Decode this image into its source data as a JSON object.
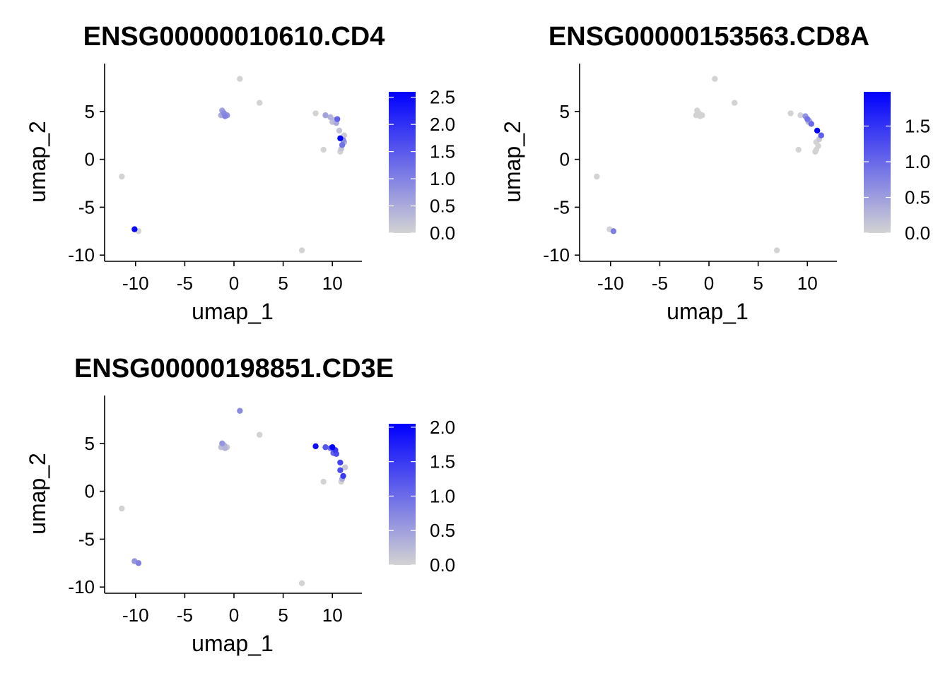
{
  "colors": {
    "low": "#d3d3d3",
    "high": "#0000ff",
    "axis": "#000000"
  },
  "chart_data": [
    {
      "type": "scatter",
      "title": "ENSG00000010610.CD4",
      "xlabel": "umap_1",
      "ylabel": "umap_2",
      "xlim": [
        -13,
        13
      ],
      "ylim": [
        -10.5,
        10
      ],
      "x_ticks": [
        -10,
        -5,
        0,
        5,
        10
      ],
      "x_tick_labels": [
        "-10",
        "-5",
        "0",
        "5",
        "10"
      ],
      "y_ticks": [
        -10,
        -5,
        0,
        5
      ],
      "y_tick_labels": [
        "-10",
        "-5",
        "0",
        "5"
      ],
      "color_scale": {
        "min": 0,
        "max": 2.6,
        "ticks": [
          0.0,
          0.5,
          1.0,
          1.5,
          2.0,
          2.5
        ],
        "tick_labels": [
          "0.0",
          "0.5",
          "1.0",
          "1.5",
          "2.0",
          "2.5"
        ]
      },
      "points": [
        {
          "x": 0.6,
          "y": 8.4,
          "v": 0
        },
        {
          "x": 2.6,
          "y": 5.9,
          "v": 0
        },
        {
          "x": -11.4,
          "y": -1.8,
          "v": 0
        },
        {
          "x": 6.9,
          "y": -9.5,
          "v": 0
        },
        {
          "x": -1.2,
          "y": 5.1,
          "v": 0.6
        },
        {
          "x": -1.0,
          "y": 4.8,
          "v": 0.9
        },
        {
          "x": -1.3,
          "y": 4.6,
          "v": 0.5
        },
        {
          "x": -0.9,
          "y": 4.5,
          "v": 1.0
        },
        {
          "x": -0.7,
          "y": 4.6,
          "v": 0.8
        },
        {
          "x": -1.1,
          "y": 4.9,
          "v": 0.7
        },
        {
          "x": 8.3,
          "y": 4.8,
          "v": 0
        },
        {
          "x": 9.3,
          "y": 4.6,
          "v": 0.6
        },
        {
          "x": 9.8,
          "y": 4.4,
          "v": 0.4
        },
        {
          "x": 10.2,
          "y": 4.1,
          "v": 0.3
        },
        {
          "x": 10.0,
          "y": 3.9,
          "v": 0.2
        },
        {
          "x": 10.5,
          "y": 4.2,
          "v": 1.4
        },
        {
          "x": 10.4,
          "y": 3.8,
          "v": 0.5
        },
        {
          "x": 10.7,
          "y": 3.0,
          "v": 0.2
        },
        {
          "x": 11.2,
          "y": 2.5,
          "v": 0.1
        },
        {
          "x": 10.8,
          "y": 2.2,
          "v": 2.6
        },
        {
          "x": 11.1,
          "y": 2.0,
          "v": 0.9
        },
        {
          "x": 11.0,
          "y": 1.5,
          "v": 1.2
        },
        {
          "x": 11.2,
          "y": 1.8,
          "v": 0.4
        },
        {
          "x": 10.9,
          "y": 1.1,
          "v": 0.2
        },
        {
          "x": 10.8,
          "y": 0.8,
          "v": 0
        },
        {
          "x": 9.1,
          "y": 1.0,
          "v": 0
        },
        {
          "x": -10.1,
          "y": -7.3,
          "v": 2.5
        },
        {
          "x": -9.7,
          "y": -7.5,
          "v": 0
        }
      ]
    },
    {
      "type": "scatter",
      "title": "ENSG00000153563.CD8A",
      "xlabel": "umap_1",
      "ylabel": "umap_2",
      "xlim": [
        -13,
        13
      ],
      "ylim": [
        -10.5,
        10
      ],
      "x_ticks": [
        -10,
        -5,
        0,
        5,
        10
      ],
      "x_tick_labels": [
        "-10",
        "-5",
        "0",
        "5",
        "10"
      ],
      "y_ticks": [
        -10,
        -5,
        0,
        5
      ],
      "y_tick_labels": [
        "-10",
        "-5",
        "0",
        "5"
      ],
      "color_scale": {
        "min": 0,
        "max": 1.98,
        "ticks": [
          0.0,
          0.5,
          1.0,
          1.5
        ],
        "tick_labels": [
          "0.0",
          "0.5",
          "1.0",
          "1.5"
        ]
      },
      "points": [
        {
          "x": 0.6,
          "y": 8.4,
          "v": 0
        },
        {
          "x": 2.6,
          "y": 5.9,
          "v": 0
        },
        {
          "x": -11.4,
          "y": -1.8,
          "v": 0
        },
        {
          "x": 6.9,
          "y": -9.5,
          "v": 0
        },
        {
          "x": -1.2,
          "y": 5.1,
          "v": 0
        },
        {
          "x": -1.0,
          "y": 4.8,
          "v": 0
        },
        {
          "x": -1.3,
          "y": 4.6,
          "v": 0
        },
        {
          "x": -0.9,
          "y": 4.5,
          "v": 0
        },
        {
          "x": -0.7,
          "y": 4.6,
          "v": 0
        },
        {
          "x": 8.3,
          "y": 4.8,
          "v": 0
        },
        {
          "x": 9.3,
          "y": 4.6,
          "v": 0
        },
        {
          "x": 9.8,
          "y": 4.5,
          "v": 0.6
        },
        {
          "x": 10.0,
          "y": 4.2,
          "v": 0.9
        },
        {
          "x": 10.2,
          "y": 4.0,
          "v": 0.4
        },
        {
          "x": 10.4,
          "y": 3.7,
          "v": 1.0
        },
        {
          "x": 10.1,
          "y": 3.9,
          "v": 0.2
        },
        {
          "x": 11.0,
          "y": 3.0,
          "v": 1.98
        },
        {
          "x": 11.4,
          "y": 2.5,
          "v": 1.1
        },
        {
          "x": 11.2,
          "y": 2.1,
          "v": 0.1
        },
        {
          "x": 10.9,
          "y": 1.8,
          "v": 0
        },
        {
          "x": 11.1,
          "y": 1.4,
          "v": 0
        },
        {
          "x": 10.9,
          "y": 1.0,
          "v": 0
        },
        {
          "x": 10.8,
          "y": 0.8,
          "v": 0
        },
        {
          "x": 9.1,
          "y": 1.0,
          "v": 0
        },
        {
          "x": -10.1,
          "y": -7.3,
          "v": 0
        },
        {
          "x": -9.7,
          "y": -7.5,
          "v": 0.8
        }
      ]
    },
    {
      "type": "scatter",
      "title": "ENSG00000198851.CD3E",
      "xlabel": "umap_1",
      "ylabel": "umap_2",
      "xlim": [
        -13,
        13
      ],
      "ylim": [
        -10.5,
        10
      ],
      "x_ticks": [
        -10,
        -5,
        0,
        5,
        10
      ],
      "x_tick_labels": [
        "-10",
        "-5",
        "0",
        "5",
        "10"
      ],
      "y_ticks": [
        -10,
        -5,
        0,
        5
      ],
      "y_tick_labels": [
        "-10",
        "-5",
        "0",
        "5"
      ],
      "color_scale": {
        "min": 0,
        "max": 2.05,
        "ticks": [
          0.0,
          0.5,
          1.0,
          1.5,
          2.0
        ],
        "tick_labels": [
          "0.0",
          "0.5",
          "1.0",
          "1.5",
          "2.0"
        ]
      },
      "points": [
        {
          "x": 0.6,
          "y": 8.4,
          "v": 0.7
        },
        {
          "x": 2.6,
          "y": 5.9,
          "v": 0
        },
        {
          "x": -11.4,
          "y": -1.8,
          "v": 0
        },
        {
          "x": 6.9,
          "y": -9.6,
          "v": 0
        },
        {
          "x": -1.2,
          "y": 5.0,
          "v": 0.6
        },
        {
          "x": -1.0,
          "y": 4.8,
          "v": 0.3
        },
        {
          "x": -1.3,
          "y": 4.6,
          "v": 0.2
        },
        {
          "x": -0.9,
          "y": 4.5,
          "v": 0.3
        },
        {
          "x": -0.7,
          "y": 4.6,
          "v": 0.1
        },
        {
          "x": 8.3,
          "y": 4.7,
          "v": 1.9
        },
        {
          "x": 9.3,
          "y": 4.6,
          "v": 1.2
        },
        {
          "x": 9.8,
          "y": 4.5,
          "v": 1.0
        },
        {
          "x": 10.0,
          "y": 4.6,
          "v": 2.05
        },
        {
          "x": 10.3,
          "y": 4.3,
          "v": 1.5
        },
        {
          "x": 10.1,
          "y": 4.0,
          "v": 1.1
        },
        {
          "x": 10.4,
          "y": 3.9,
          "v": 1.3
        },
        {
          "x": 10.8,
          "y": 3.0,
          "v": 1.4
        },
        {
          "x": 11.3,
          "y": 2.5,
          "v": 0.1
        },
        {
          "x": 10.8,
          "y": 2.2,
          "v": 1.3
        },
        {
          "x": 11.1,
          "y": 1.6,
          "v": 1.5
        },
        {
          "x": 11.0,
          "y": 1.3,
          "v": 0.4
        },
        {
          "x": 10.9,
          "y": 1.0,
          "v": 0
        },
        {
          "x": 9.1,
          "y": 1.0,
          "v": 0
        },
        {
          "x": -10.1,
          "y": -7.3,
          "v": 0.6
        },
        {
          "x": -9.7,
          "y": -7.5,
          "v": 0.8
        }
      ]
    }
  ]
}
